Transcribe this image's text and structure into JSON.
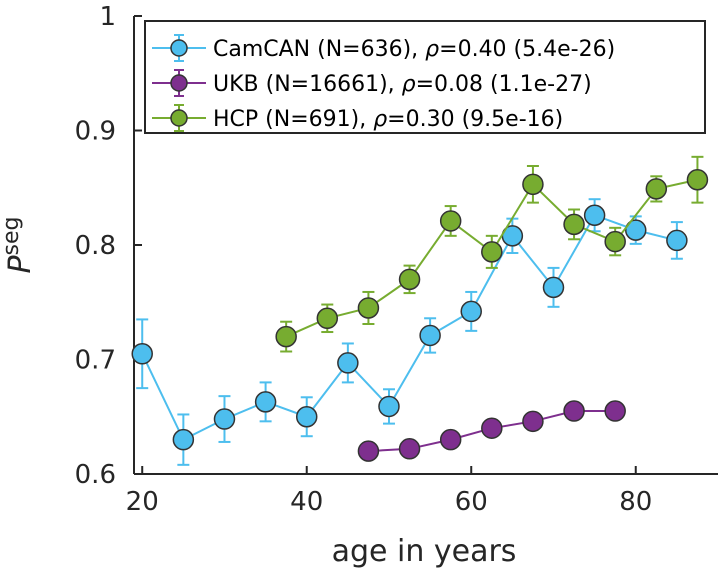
{
  "chart_data": {
    "type": "line",
    "xlabel": "age in years",
    "ylabel": "P",
    "ylabel_subscript": "seg",
    "xlim": [
      19,
      90
    ],
    "ylim": [
      0.6,
      1.0
    ],
    "xticks": [
      20,
      40,
      60,
      80
    ],
    "yticks": [
      0.6,
      0.7,
      0.8,
      0.9,
      1.0
    ],
    "xtick_labels": [
      "20",
      "40",
      "60",
      "80"
    ],
    "ytick_labels": [
      "0.6",
      "0.7",
      "0.8",
      "0.9",
      "1"
    ],
    "legend_position": "top",
    "series": [
      {
        "name": "CamCAN (N=636)",
        "rho_symbol": "ρ",
        "stat": "=0.40 (5.4e-26)",
        "color": "#4DBEEE",
        "x": [
          20,
          25,
          30,
          35,
          40,
          45,
          50,
          55,
          60,
          65,
          70,
          75,
          80,
          85
        ],
        "y": [
          0.705,
          0.63,
          0.648,
          0.663,
          0.65,
          0.697,
          0.659,
          0.721,
          0.742,
          0.808,
          0.763,
          0.826,
          0.813,
          0.804
        ],
        "err": [
          0.03,
          0.022,
          0.02,
          0.017,
          0.017,
          0.017,
          0.015,
          0.015,
          0.017,
          0.015,
          0.017,
          0.014,
          0.012,
          0.016
        ]
      },
      {
        "name": "UKB (N=16661)",
        "rho_symbol": "ρ",
        "stat": "=0.08 (1.1e-27)",
        "color": "#7E2F8E",
        "x": [
          47.5,
          52.5,
          57.5,
          62.5,
          67.5,
          72.5,
          77.5
        ],
        "y": [
          0.62,
          0.622,
          0.63,
          0.64,
          0.646,
          0.655,
          0.655
        ],
        "err": [
          0.002,
          0.002,
          0.002,
          0.002,
          0.002,
          0.002,
          0.003
        ]
      },
      {
        "name": "HCP (N=691)",
        "rho_symbol": "ρ",
        "stat": "=0.30 (9.5e-16)",
        "color": "#77AC30",
        "x": [
          37.5,
          42.5,
          47.5,
          52.5,
          57.5,
          62.5,
          67.5,
          72.5,
          77.5,
          82.5,
          87.5
        ],
        "y": [
          0.72,
          0.736,
          0.745,
          0.77,
          0.821,
          0.794,
          0.853,
          0.818,
          0.803,
          0.849,
          0.857
        ],
        "err": [
          0.013,
          0.012,
          0.014,
          0.012,
          0.013,
          0.014,
          0.016,
          0.013,
          0.012,
          0.011,
          0.02
        ]
      }
    ]
  }
}
